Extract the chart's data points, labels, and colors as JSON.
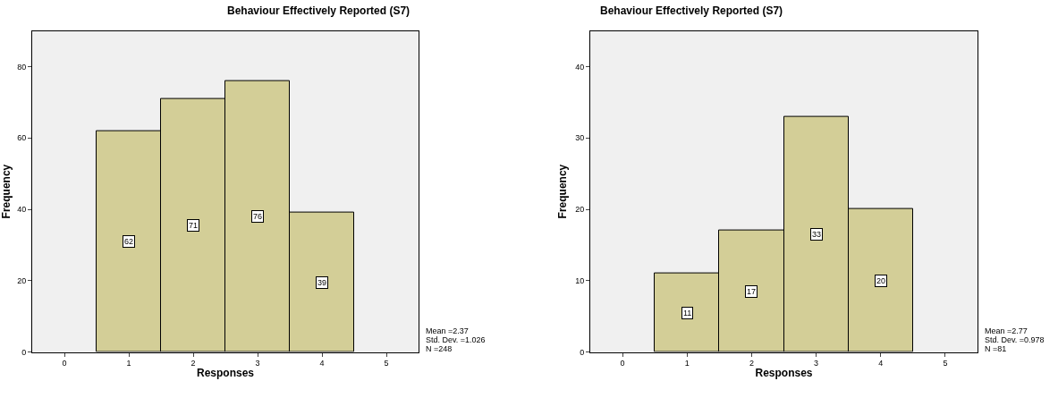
{
  "chart_data": [
    {
      "type": "histogram",
      "title": "Behaviour Effectively Reported (S7)",
      "xlabel": "Responses",
      "ylabel": "Frequency",
      "bins": [
        0.5,
        1.5,
        2.5,
        3.5,
        4.5
      ],
      "values": [
        62,
        71,
        76,
        39
      ],
      "color": "#d3ce97",
      "data_labels": true,
      "xlim": [
        -0.5,
        5.5
      ],
      "xticks": [
        0,
        1,
        2,
        3,
        4,
        5
      ],
      "ylim": [
        0,
        90
      ],
      "yticks": [
        0,
        20,
        40,
        60,
        80
      ],
      "grid": false,
      "legend": false,
      "annotations": [
        "Mean =2.37",
        "Std. Dev. =1.026",
        "N =248"
      ]
    },
    {
      "type": "histogram",
      "title": "Behaviour Effectively Reported (S7)",
      "xlabel": "Responses",
      "ylabel": "Frequency",
      "bins": [
        0.5,
        1.5,
        2.5,
        3.5,
        4.5
      ],
      "values": [
        11,
        17,
        33,
        20
      ],
      "color": "#d3ce97",
      "data_labels": true,
      "xlim": [
        -0.5,
        5.5
      ],
      "xticks": [
        0,
        1,
        2,
        3,
        4,
        5
      ],
      "ylim": [
        0,
        45
      ],
      "yticks": [
        0,
        10,
        20,
        30,
        40
      ],
      "grid": false,
      "legend": false,
      "annotations": [
        "Mean =2.77",
        "Std. Dev. =0.978",
        "N =81"
      ]
    }
  ]
}
